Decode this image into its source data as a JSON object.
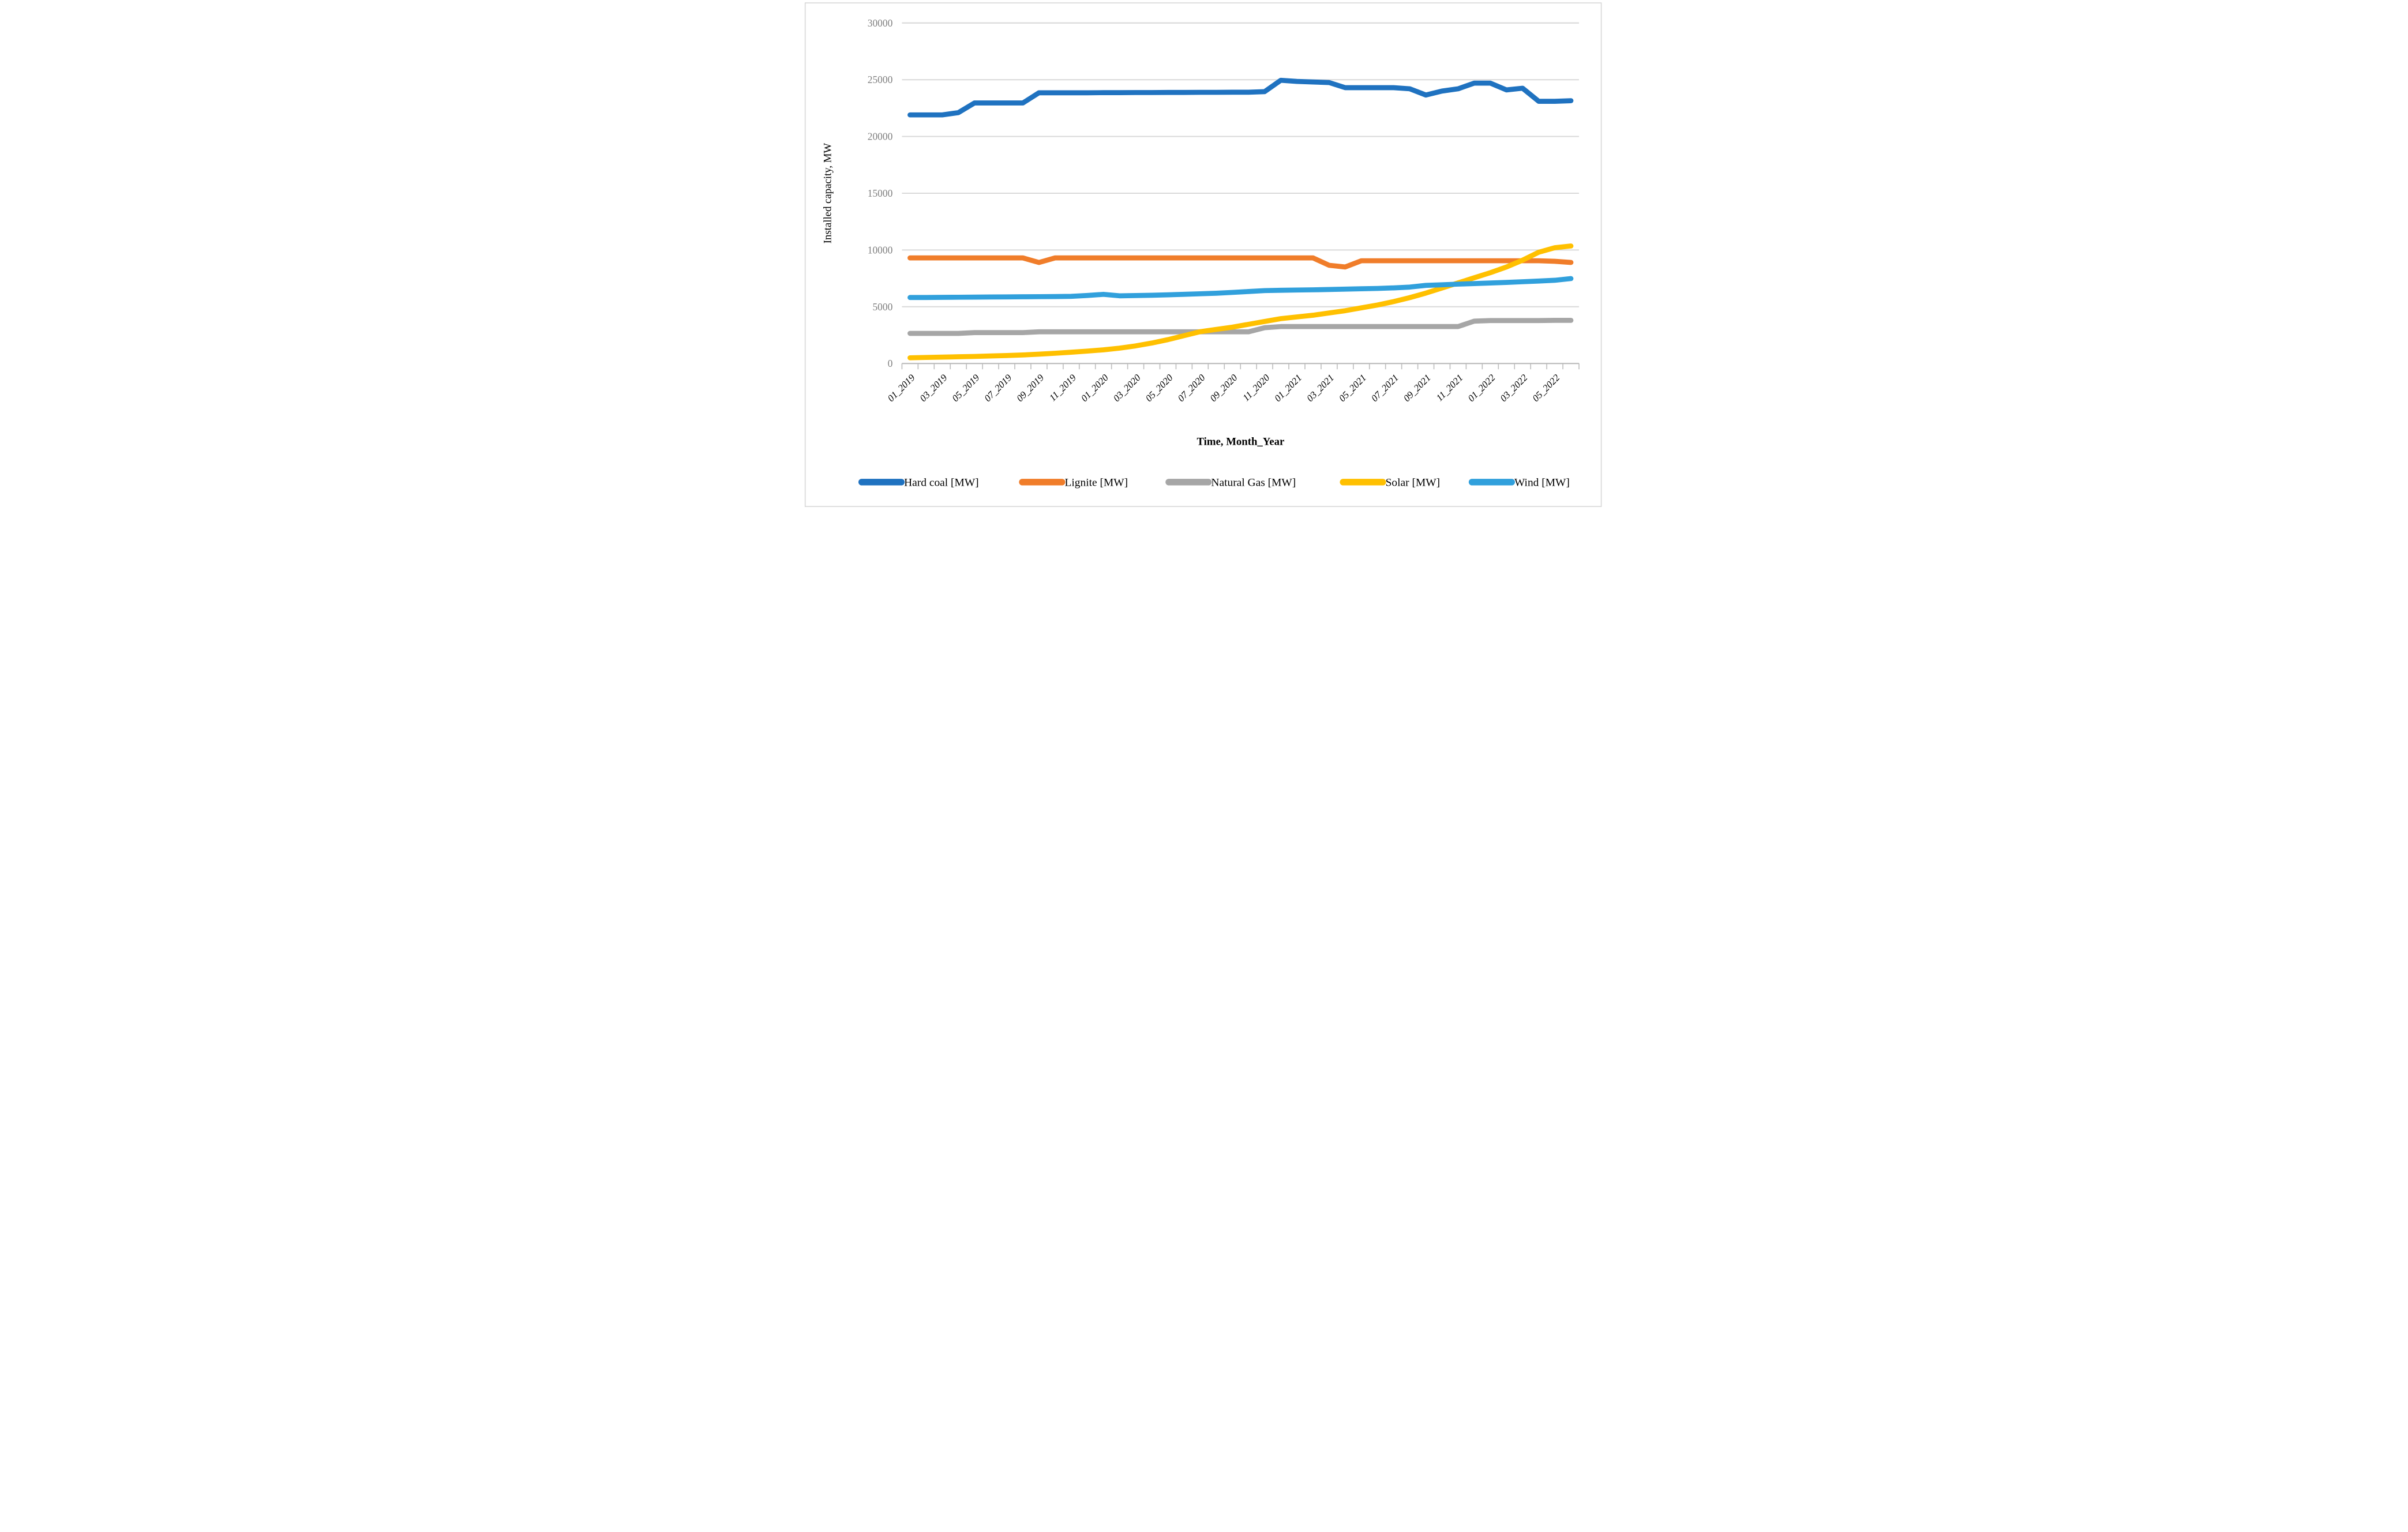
{
  "figure": {
    "background": "#ffffff",
    "border_color": "#d9d9d9"
  },
  "chart_data": {
    "type": "line",
    "title": "",
    "xlabel": "Time, Month_Year",
    "ylabel": "Installed capacity, MW",
    "ylim": [
      0,
      30000
    ],
    "y_ticks": [
      0,
      5000,
      10000,
      15000,
      20000,
      25000,
      30000
    ],
    "grid": "horizontal",
    "gridline_color": "#d9d9d9",
    "axis_line_color": "#bfbfbf",
    "axis_text_color": "#7f7f7f",
    "legend_position": "bottom",
    "x_label_every": 2,
    "x_label_rotation": -45,
    "categories": [
      "01_2019",
      "02_2019",
      "03_2019",
      "04_2019",
      "05_2019",
      "06_2019",
      "07_2019",
      "08_2019",
      "09_2019",
      "10_2019",
      "11_2019",
      "12_2019",
      "01_2020",
      "02_2020",
      "03_2020",
      "04_2020",
      "05_2020",
      "06_2020",
      "07_2020",
      "08_2020",
      "09_2020",
      "10_2020",
      "11_2020",
      "12_2020",
      "01_2021",
      "02_2021",
      "03_2021",
      "04_2021",
      "05_2021",
      "06_2021",
      "07_2021",
      "08_2021",
      "09_2021",
      "10_2021",
      "11_2021",
      "12_2021",
      "01_2022",
      "02_2022",
      "03_2022",
      "04_2022",
      "05_2022",
      "06_2022"
    ],
    "series": [
      {
        "name": "Hard coal [MW]",
        "color": "#1f72c0",
        "values": [
          21900,
          21900,
          21900,
          22100,
          22950,
          22950,
          22950,
          22950,
          23850,
          23850,
          23850,
          23850,
          23860,
          23860,
          23870,
          23870,
          23880,
          23880,
          23890,
          23890,
          23900,
          23900,
          23950,
          24950,
          24850,
          24800,
          24750,
          24300,
          24300,
          24300,
          24300,
          24200,
          23650,
          24000,
          24200,
          24700,
          24700,
          24100,
          24250,
          23100,
          23100,
          23150
        ]
      },
      {
        "name": "Lignite [MW]",
        "color": "#f07d2a",
        "values": [
          9300,
          9300,
          9300,
          9300,
          9300,
          9300,
          9300,
          9300,
          8900,
          9300,
          9300,
          9300,
          9300,
          9300,
          9300,
          9300,
          9300,
          9300,
          9300,
          9300,
          9300,
          9300,
          9300,
          9300,
          9300,
          9300,
          8650,
          8500,
          9050,
          9050,
          9050,
          9050,
          9050,
          9050,
          9050,
          9050,
          9050,
          9050,
          9050,
          9050,
          9000,
          8900
        ]
      },
      {
        "name": "Natural Gas [MW]",
        "color": "#a6a6a6",
        "values": [
          2650,
          2650,
          2650,
          2650,
          2720,
          2720,
          2720,
          2720,
          2790,
          2790,
          2790,
          2790,
          2790,
          2790,
          2790,
          2790,
          2790,
          2790,
          2790,
          2790,
          2790,
          2790,
          3150,
          3250,
          3250,
          3250,
          3250,
          3250,
          3250,
          3250,
          3250,
          3250,
          3250,
          3250,
          3250,
          3730,
          3780,
          3780,
          3780,
          3780,
          3800,
          3800
        ]
      },
      {
        "name": "Solar [MW]",
        "color": "#ffc000",
        "values": [
          500,
          530,
          560,
          590,
          620,
          660,
          700,
          750,
          820,
          900,
          990,
          1090,
          1200,
          1350,
          1550,
          1800,
          2100,
          2450,
          2800,
          3000,
          3200,
          3450,
          3700,
          3950,
          4100,
          4250,
          4450,
          4650,
          4900,
          5150,
          5450,
          5800,
          6200,
          6650,
          7100,
          7550,
          8000,
          8500,
          9100,
          9800,
          10200,
          10350
        ]
      },
      {
        "name": "Wind [MW]",
        "color": "#31a0dc",
        "values": [
          5810,
          5815,
          5825,
          5835,
          5845,
          5855,
          5865,
          5875,
          5885,
          5895,
          5915,
          5990,
          6090,
          5960,
          5985,
          6010,
          6050,
          6090,
          6140,
          6190,
          6260,
          6340,
          6420,
          6450,
          6470,
          6490,
          6520,
          6550,
          6580,
          6610,
          6660,
          6730,
          6880,
          6930,
          6990,
          7040,
          7090,
          7140,
          7200,
          7260,
          7330,
          7480
        ]
      }
    ]
  }
}
